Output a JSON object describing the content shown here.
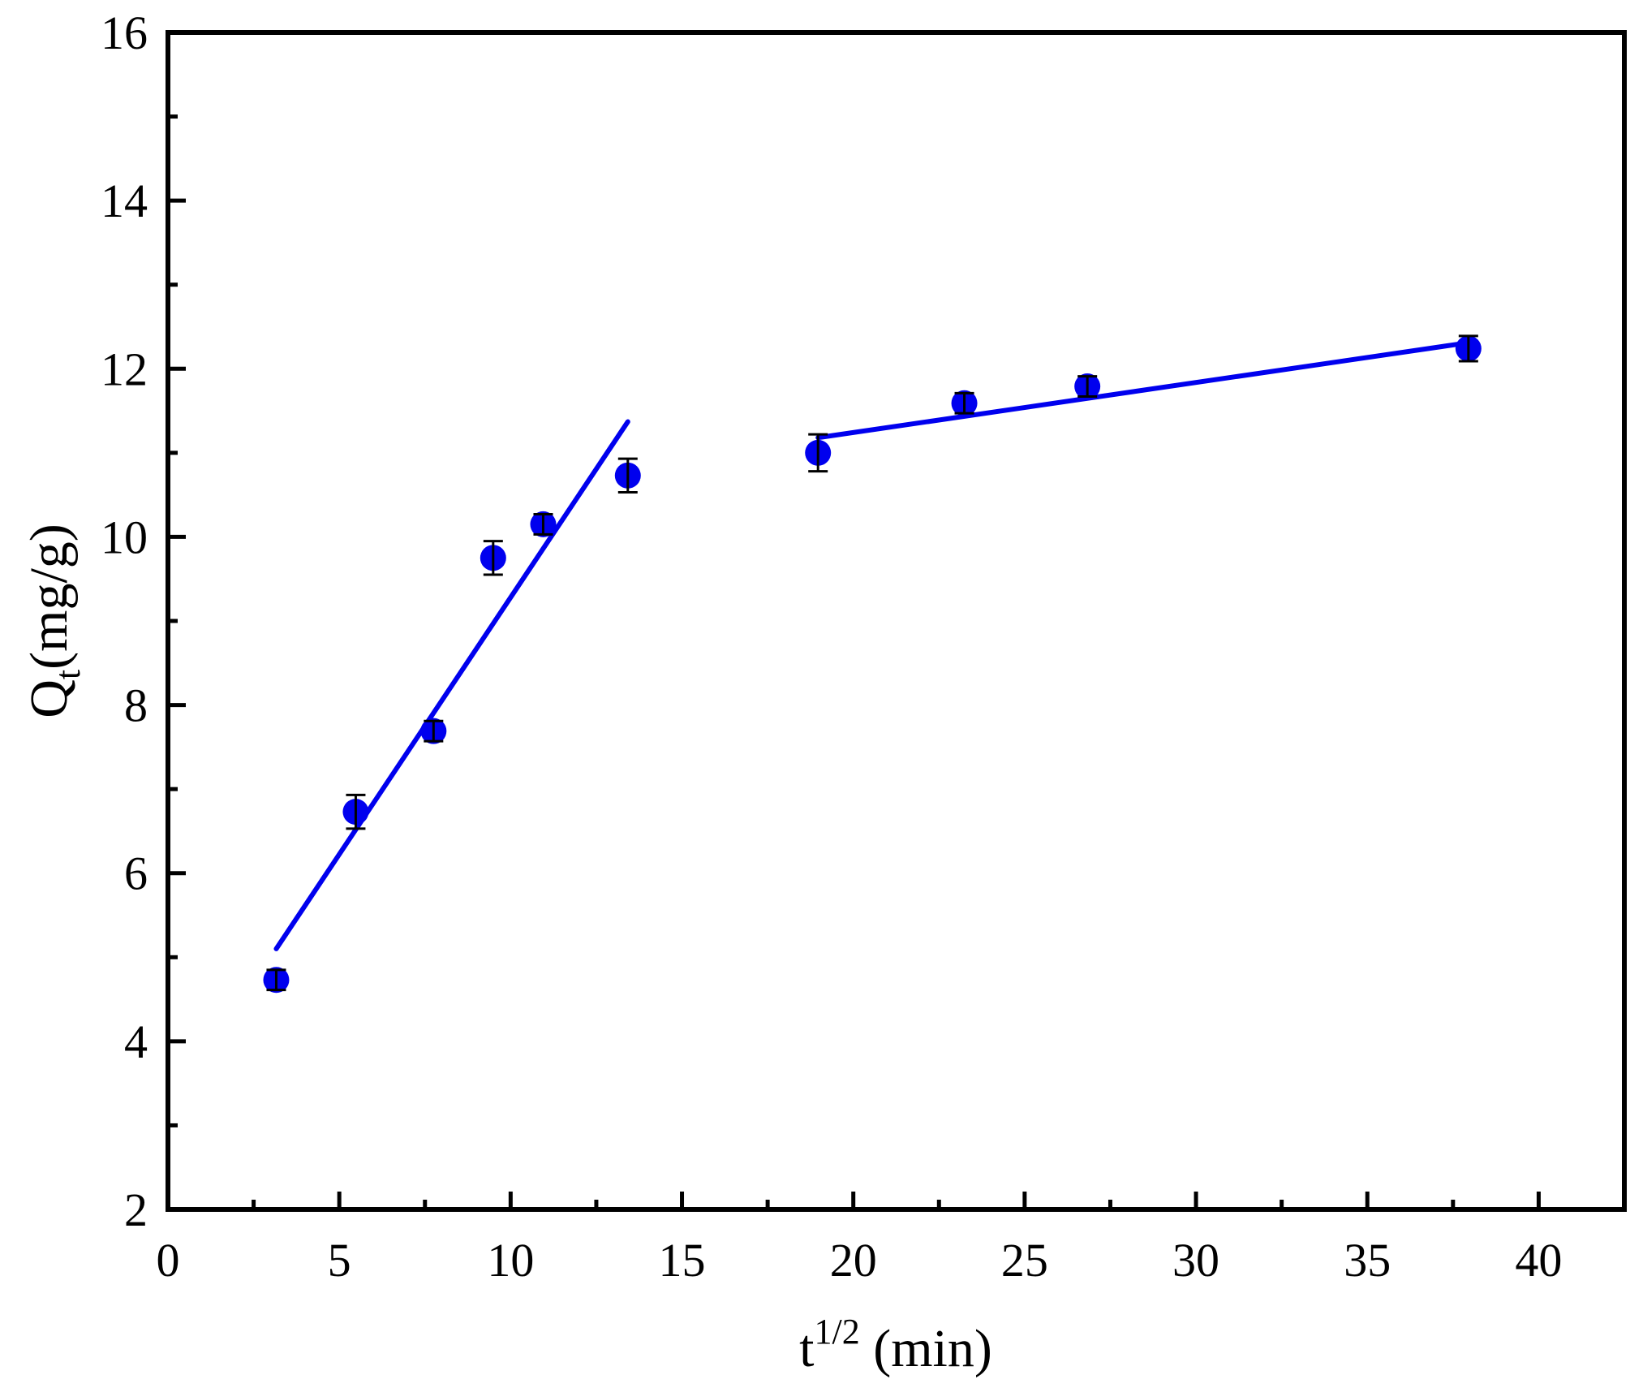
{
  "chart_data": {
    "type": "scatter",
    "title": "",
    "xlabel": {
      "base": "t",
      "sup": "1/2",
      "rest": " (min)"
    },
    "ylabel": {
      "base": "Q",
      "sub": "t",
      "rest": "(mg/g)"
    },
    "xlim": [
      0,
      42.5
    ],
    "ylim": [
      2,
      16
    ],
    "xticks": [
      0,
      5,
      10,
      15,
      20,
      25,
      30,
      35,
      40
    ],
    "yticks": [
      2,
      4,
      6,
      8,
      10,
      12,
      14,
      16
    ],
    "xtick_labels": [
      "0",
      "5",
      "10",
      "15",
      "20",
      "25",
      "30",
      "35",
      "40"
    ],
    "ytick_labels": [
      "2",
      "4",
      "6",
      "8",
      "10",
      "12",
      "14",
      "16"
    ],
    "grid": false,
    "legend": "none",
    "marker_color": "#0000ee",
    "line_color": "#0000ee",
    "errorbar_color": "#000000",
    "points": [
      {
        "x": 3.16,
        "y": 4.73,
        "err": 0.12
      },
      {
        "x": 5.48,
        "y": 6.73,
        "err": 0.2
      },
      {
        "x": 7.75,
        "y": 7.69,
        "err": 0.12
      },
      {
        "x": 9.49,
        "y": 9.75,
        "err": 0.2
      },
      {
        "x": 10.95,
        "y": 10.15,
        "err": 0.12
      },
      {
        "x": 13.42,
        "y": 10.73,
        "err": 0.2
      },
      {
        "x": 18.97,
        "y": 11.0,
        "err": 0.22
      },
      {
        "x": 23.24,
        "y": 11.59,
        "err": 0.12
      },
      {
        "x": 26.83,
        "y": 11.79,
        "err": 0.12
      },
      {
        "x": 37.95,
        "y": 12.24,
        "err": 0.15
      }
    ],
    "fit_lines": [
      {
        "x": [
          3.16,
          13.42
        ],
        "y": [
          5.1,
          11.37
        ]
      },
      {
        "x": [
          18.97,
          37.95
        ],
        "y": [
          11.18,
          12.31
        ]
      }
    ]
  }
}
